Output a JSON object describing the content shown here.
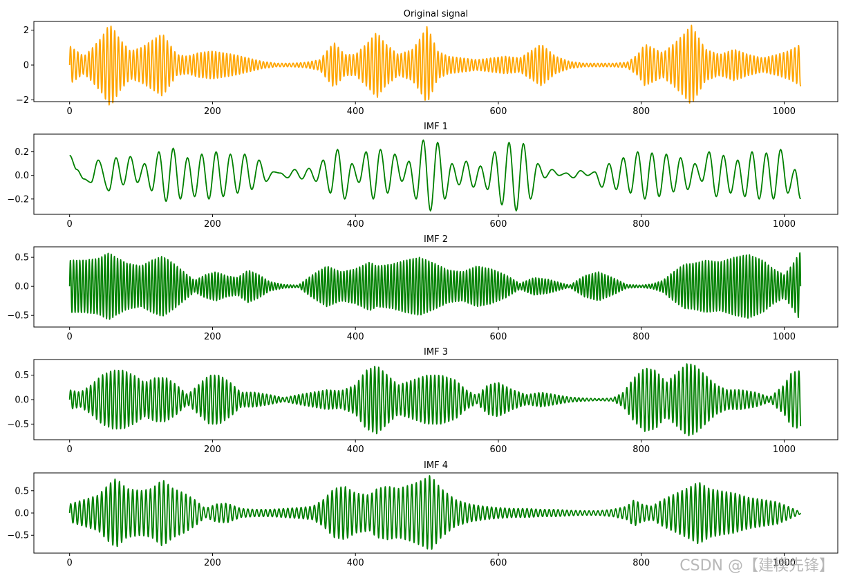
{
  "watermark": "CSDN @【建模先锋】",
  "colors": {
    "original": "#ffa500",
    "imf": "#008000",
    "axis": "#000000"
  },
  "chart_data": [
    {
      "type": "line",
      "title": "Original signal",
      "color": "#ffa500",
      "xlim": [
        -50,
        1075
      ],
      "ylim": [
        -2.1,
        2.5
      ],
      "xticks": [
        0,
        200,
        400,
        600,
        800,
        1000
      ],
      "yticks": [
        -2,
        0,
        2
      ],
      "x": [
        0,
        10,
        20,
        30,
        45,
        55,
        60,
        70,
        85,
        100,
        115,
        130,
        140,
        150,
        165,
        180,
        200,
        215,
        230,
        250,
        270,
        290,
        310,
        330,
        350,
        360,
        370,
        385,
        400,
        420,
        430,
        440,
        460,
        480,
        490,
        500,
        505,
        515,
        530,
        550,
        570,
        590,
        610,
        630,
        645,
        660,
        680,
        700,
        720,
        740,
        760,
        780,
        795,
        805,
        815,
        830,
        845,
        860,
        870,
        880,
        890,
        910,
        930,
        950,
        970,
        990,
        1005,
        1015,
        1023
      ],
      "amplitude": [
        1.1,
        0.8,
        0.5,
        0.9,
        1.6,
        2.3,
        2.2,
        1.5,
        0.8,
        1.0,
        1.4,
        1.8,
        1.2,
        0.6,
        0.5,
        0.7,
        0.8,
        0.7,
        0.6,
        0.4,
        0.2,
        0.1,
        0.1,
        0.15,
        0.3,
        0.8,
        1.3,
        0.6,
        0.6,
        1.4,
        1.9,
        1.3,
        0.6,
        0.9,
        1.5,
        2.2,
        1.8,
        0.8,
        0.5,
        0.4,
        0.3,
        0.4,
        0.5,
        0.4,
        0.8,
        1.2,
        0.5,
        0.2,
        0.1,
        0.1,
        0.1,
        0.15,
        0.6,
        1.2,
        1.0,
        0.7,
        1.2,
        1.8,
        2.3,
        1.6,
        0.9,
        0.6,
        0.9,
        0.6,
        0.4,
        0.6,
        0.8,
        1.0,
        1.2
      ]
    },
    {
      "type": "line",
      "title": "IMF 1",
      "color": "#008000",
      "xlim": [
        -50,
        1075
      ],
      "ylim": [
        -0.33,
        0.35
      ],
      "xticks": [
        0,
        200,
        400,
        600,
        800,
        1000
      ],
      "yticks": [
        -0.2,
        0.0,
        0.2
      ],
      "x": [
        0,
        10,
        20,
        30,
        40,
        55,
        65,
        75,
        85,
        95,
        105,
        115,
        125,
        135,
        145,
        155,
        165,
        175,
        185,
        195,
        205,
        215,
        225,
        235,
        245,
        255,
        265,
        275,
        285,
        295,
        305,
        315,
        325,
        335,
        345,
        355,
        365,
        375,
        385,
        395,
        405,
        415,
        425,
        435,
        445,
        455,
        465,
        475,
        485,
        495,
        505,
        515,
        525,
        535,
        545,
        555,
        565,
        575,
        585,
        595,
        605,
        615,
        625,
        635,
        645,
        655,
        665,
        675,
        685,
        695,
        705,
        715,
        725,
        735,
        745,
        755,
        765,
        775,
        785,
        795,
        805,
        815,
        825,
        835,
        845,
        855,
        865,
        875,
        885,
        895,
        905,
        915,
        925,
        935,
        945,
        955,
        965,
        975,
        985,
        995,
        1005,
        1015,
        1023
      ],
      "y": [
        0.17,
        0.05,
        -0.03,
        -0.06,
        0.13,
        -0.13,
        0.15,
        -0.08,
        0.16,
        -0.06,
        0.1,
        -0.13,
        0.2,
        -0.22,
        0.23,
        -0.2,
        0.15,
        -0.18,
        0.18,
        -0.2,
        0.2,
        -0.18,
        0.18,
        -0.15,
        0.18,
        -0.12,
        0.13,
        -0.05,
        0.03,
        0.02,
        -0.02,
        0.05,
        -0.03,
        0.06,
        -0.05,
        0.13,
        -0.15,
        0.22,
        -0.2,
        0.1,
        -0.06,
        0.2,
        -0.2,
        0.22,
        -0.15,
        0.18,
        -0.05,
        0.12,
        -0.2,
        0.3,
        -0.3,
        0.28,
        -0.2,
        0.1,
        -0.08,
        0.12,
        -0.1,
        0.08,
        -0.12,
        0.2,
        -0.25,
        0.28,
        -0.3,
        0.27,
        -0.2,
        0.1,
        -0.02,
        0.05,
        0.0,
        0.02,
        -0.02,
        0.04,
        0.0,
        0.03,
        -0.1,
        0.1,
        -0.12,
        0.15,
        -0.15,
        0.2,
        -0.2,
        0.19,
        -0.18,
        0.18,
        -0.14,
        0.15,
        -0.12,
        0.1,
        -0.05,
        0.2,
        -0.18,
        0.17,
        -0.15,
        0.13,
        -0.18,
        0.2,
        -0.2,
        0.19,
        -0.2,
        0.22,
        -0.15,
        0.05,
        -0.2
      ]
    },
    {
      "type": "line",
      "title": "IMF 2",
      "color": "#008000",
      "xlim": [
        -50,
        1075
      ],
      "ylim": [
        -0.7,
        0.68
      ],
      "xticks": [
        0,
        200,
        400,
        600,
        800,
        1000
      ],
      "yticks": [
        -0.5,
        0.0,
        0.5
      ],
      "x": [
        0,
        20,
        40,
        55,
        65,
        80,
        100,
        115,
        130,
        145,
        160,
        175,
        190,
        205,
        220,
        235,
        250,
        265,
        280,
        300,
        320,
        340,
        360,
        380,
        400,
        420,
        430,
        450,
        470,
        490,
        510,
        530,
        550,
        570,
        590,
        610,
        630,
        650,
        670,
        690,
        700,
        720,
        740,
        760,
        780,
        800,
        815,
        830,
        845,
        860,
        875,
        890,
        910,
        930,
        950,
        970,
        985,
        1000,
        1010,
        1023
      ],
      "amplitude": [
        0.45,
        0.45,
        0.48,
        0.58,
        0.5,
        0.4,
        0.35,
        0.45,
        0.52,
        0.4,
        0.25,
        0.1,
        0.2,
        0.25,
        0.18,
        0.15,
        0.28,
        0.2,
        0.08,
        0.03,
        0.02,
        0.2,
        0.35,
        0.25,
        0.3,
        0.42,
        0.35,
        0.38,
        0.45,
        0.5,
        0.4,
        0.28,
        0.25,
        0.35,
        0.3,
        0.2,
        0.05,
        0.15,
        0.12,
        0.05,
        0.02,
        0.18,
        0.25,
        0.15,
        0.03,
        0.02,
        0.04,
        0.1,
        0.25,
        0.38,
        0.4,
        0.45,
        0.42,
        0.5,
        0.55,
        0.45,
        0.3,
        0.2,
        0.35,
        0.6
      ]
    },
    {
      "type": "line",
      "title": "IMF 3",
      "color": "#008000",
      "xlim": [
        -50,
        1075
      ],
      "ylim": [
        -0.82,
        0.82
      ],
      "xticks": [
        0,
        200,
        400,
        600,
        800,
        1000
      ],
      "yticks": [
        -0.5,
        0.0,
        0.5
      ],
      "x": [
        0,
        15,
        30,
        45,
        60,
        75,
        90,
        105,
        120,
        135,
        150,
        165,
        180,
        195,
        210,
        225,
        240,
        260,
        280,
        300,
        320,
        340,
        360,
        380,
        400,
        415,
        430,
        445,
        460,
        480,
        500,
        520,
        540,
        555,
        570,
        585,
        600,
        620,
        640,
        660,
        680,
        700,
        720,
        740,
        760,
        775,
        790,
        805,
        820,
        835,
        850,
        865,
        875,
        890,
        905,
        920,
        940,
        960,
        980,
        1000,
        1010,
        1023
      ],
      "amplitude": [
        0.2,
        0.15,
        0.3,
        0.5,
        0.6,
        0.6,
        0.5,
        0.35,
        0.45,
        0.45,
        0.3,
        0.1,
        0.3,
        0.5,
        0.5,
        0.35,
        0.15,
        0.15,
        0.1,
        0.04,
        0.1,
        0.15,
        0.2,
        0.18,
        0.3,
        0.6,
        0.7,
        0.5,
        0.3,
        0.4,
        0.5,
        0.5,
        0.4,
        0.2,
        0.08,
        0.3,
        0.35,
        0.2,
        0.1,
        0.15,
        0.1,
        0.05,
        0.03,
        0.02,
        0.03,
        0.15,
        0.45,
        0.65,
        0.6,
        0.35,
        0.55,
        0.75,
        0.7,
        0.5,
        0.3,
        0.2,
        0.2,
        0.15,
        0.05,
        0.3,
        0.55,
        0.6
      ]
    },
    {
      "type": "line",
      "title": "IMF 4",
      "color": "#008000",
      "xlim": [
        -50,
        1075
      ],
      "ylim": [
        -0.9,
        0.9
      ],
      "xticks": [
        0,
        200,
        400,
        600,
        800,
        1000
      ],
      "yticks": [
        -0.5,
        0.0,
        0.5
      ],
      "x": [
        0,
        20,
        40,
        55,
        65,
        80,
        100,
        115,
        130,
        145,
        160,
        175,
        190,
        205,
        220,
        240,
        260,
        280,
        300,
        320,
        340,
        355,
        370,
        385,
        400,
        420,
        430,
        445,
        460,
        480,
        495,
        505,
        520,
        540,
        560,
        580,
        600,
        620,
        640,
        660,
        680,
        700,
        720,
        740,
        760,
        780,
        790,
        800,
        815,
        830,
        850,
        870,
        880,
        895,
        910,
        930,
        950,
        970,
        990,
        1005,
        1023
      ],
      "amplitude": [
        0.2,
        0.3,
        0.4,
        0.65,
        0.78,
        0.55,
        0.5,
        0.55,
        0.75,
        0.55,
        0.45,
        0.3,
        0.1,
        0.2,
        0.22,
        0.1,
        0.08,
        0.08,
        0.1,
        0.12,
        0.15,
        0.3,
        0.55,
        0.6,
        0.45,
        0.4,
        0.55,
        0.6,
        0.55,
        0.65,
        0.75,
        0.85,
        0.55,
        0.3,
        0.2,
        0.15,
        0.12,
        0.1,
        0.1,
        0.08,
        0.08,
        0.06,
        0.05,
        0.05,
        0.08,
        0.15,
        0.3,
        0.2,
        0.15,
        0.3,
        0.45,
        0.6,
        0.7,
        0.55,
        0.5,
        0.45,
        0.35,
        0.3,
        0.25,
        0.15,
        0.02
      ]
    }
  ]
}
